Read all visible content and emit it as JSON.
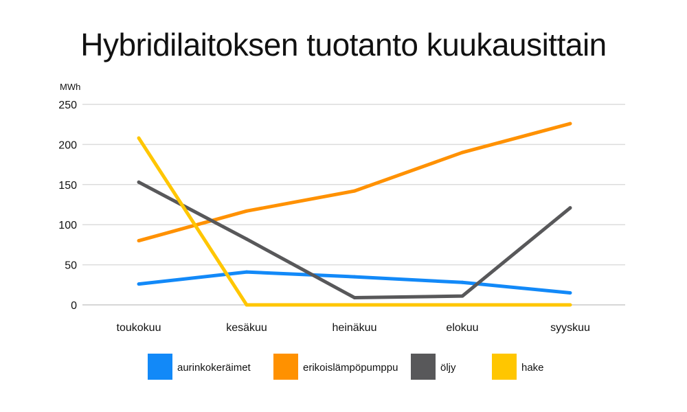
{
  "chart_data": {
    "type": "line",
    "title": "Hybridilaitoksen tuotanto kuukausittain",
    "ylabel": "MWh",
    "xlabel": "",
    "categories": [
      "toukokuu",
      "kesäkuu",
      "heinäkuu",
      "elokuu",
      "syyskuu"
    ],
    "ylim": [
      0,
      250
    ],
    "yticks": [
      0,
      50,
      100,
      150,
      200,
      250
    ],
    "grid": true,
    "legend": "bottom",
    "series": [
      {
        "name": "aurinkokeräimet",
        "color": "#1289f8",
        "values": [
          26,
          41,
          35,
          28,
          15
        ]
      },
      {
        "name": "erikoislämpöpumppu",
        "color": "#ff9100",
        "values": [
          80,
          117,
          142,
          190,
          226
        ]
      },
      {
        "name": "öljy",
        "color": "#58585a",
        "values": [
          153,
          82,
          9,
          11,
          121
        ]
      },
      {
        "name": "hake",
        "color": "#ffc600",
        "values": [
          208,
          0,
          0,
          0,
          0
        ]
      }
    ]
  }
}
